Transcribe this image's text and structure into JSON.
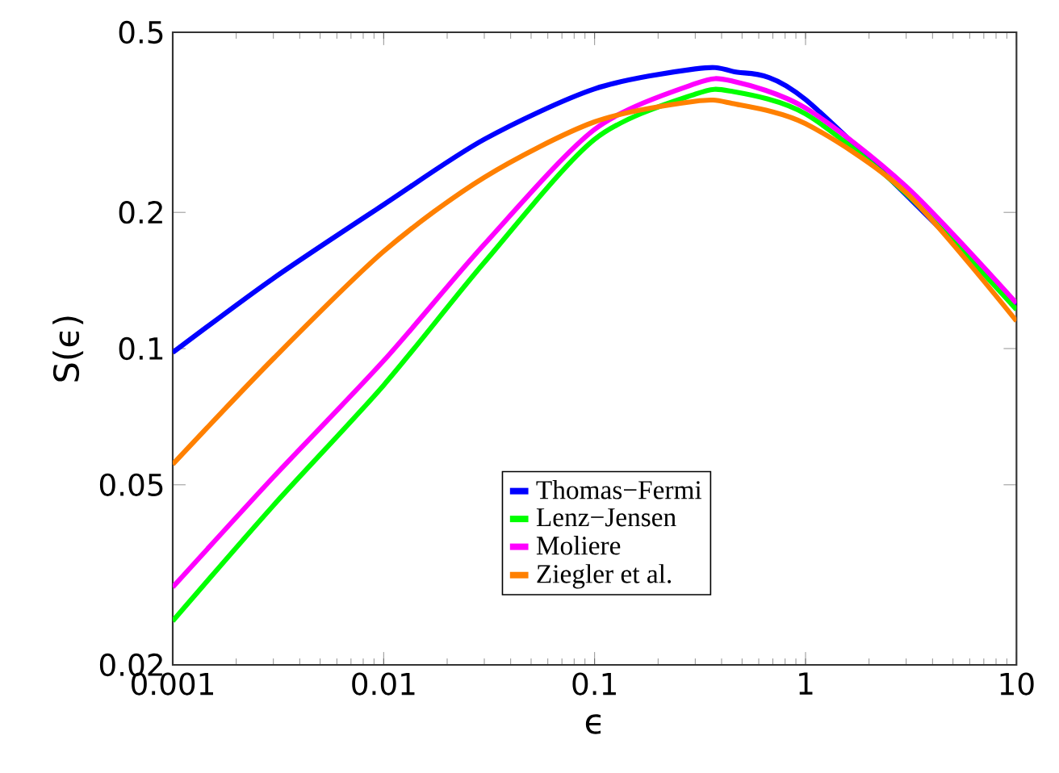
{
  "chart_data": {
    "type": "line",
    "xlabel": "ϵ",
    "ylabel": "S(ϵ)",
    "log": "xy",
    "xlim": [
      0.001,
      10
    ],
    "ylim": [
      0.02,
      0.5
    ],
    "xticks": [
      0.001,
      0.01,
      0.1,
      1,
      10
    ],
    "yticks": [
      0.02,
      0.05,
      0.1,
      0.2,
      0.5
    ],
    "legend": "bottom",
    "x": [
      0.001,
      0.003,
      0.01,
      0.03,
      0.1,
      0.3,
      0.45,
      1,
      3,
      10
    ],
    "series": [
      {
        "name": "Thomas−Fermi",
        "color": "#0000ff",
        "values": [
          0.098,
          0.143,
          0.208,
          0.29,
          0.375,
          0.415,
          0.41,
          0.355,
          null,
          0.125
        ]
      },
      {
        "name": "Lenz−Jensen",
        "color": "#00ff00",
        "values": [
          0.025,
          0.045,
          0.083,
          0.155,
          0.29,
          0.365,
          0.37,
          0.33,
          0.22,
          0.122
        ]
      },
      {
        "name": "Moliere",
        "color": "#ff00ff",
        "values": [
          0.0297,
          0.052,
          0.094,
          0.17,
          0.305,
          0.385,
          0.39,
          0.34,
          0.228,
          0.126
        ]
      },
      {
        "name": "Ziegler et al.",
        "color": "#ff8000",
        "values": [
          0.0555,
          0.095,
          0.164,
          0.239,
          0.317,
          0.352,
          0.348,
          0.314,
          0.221,
          0.115
        ]
      }
    ]
  }
}
